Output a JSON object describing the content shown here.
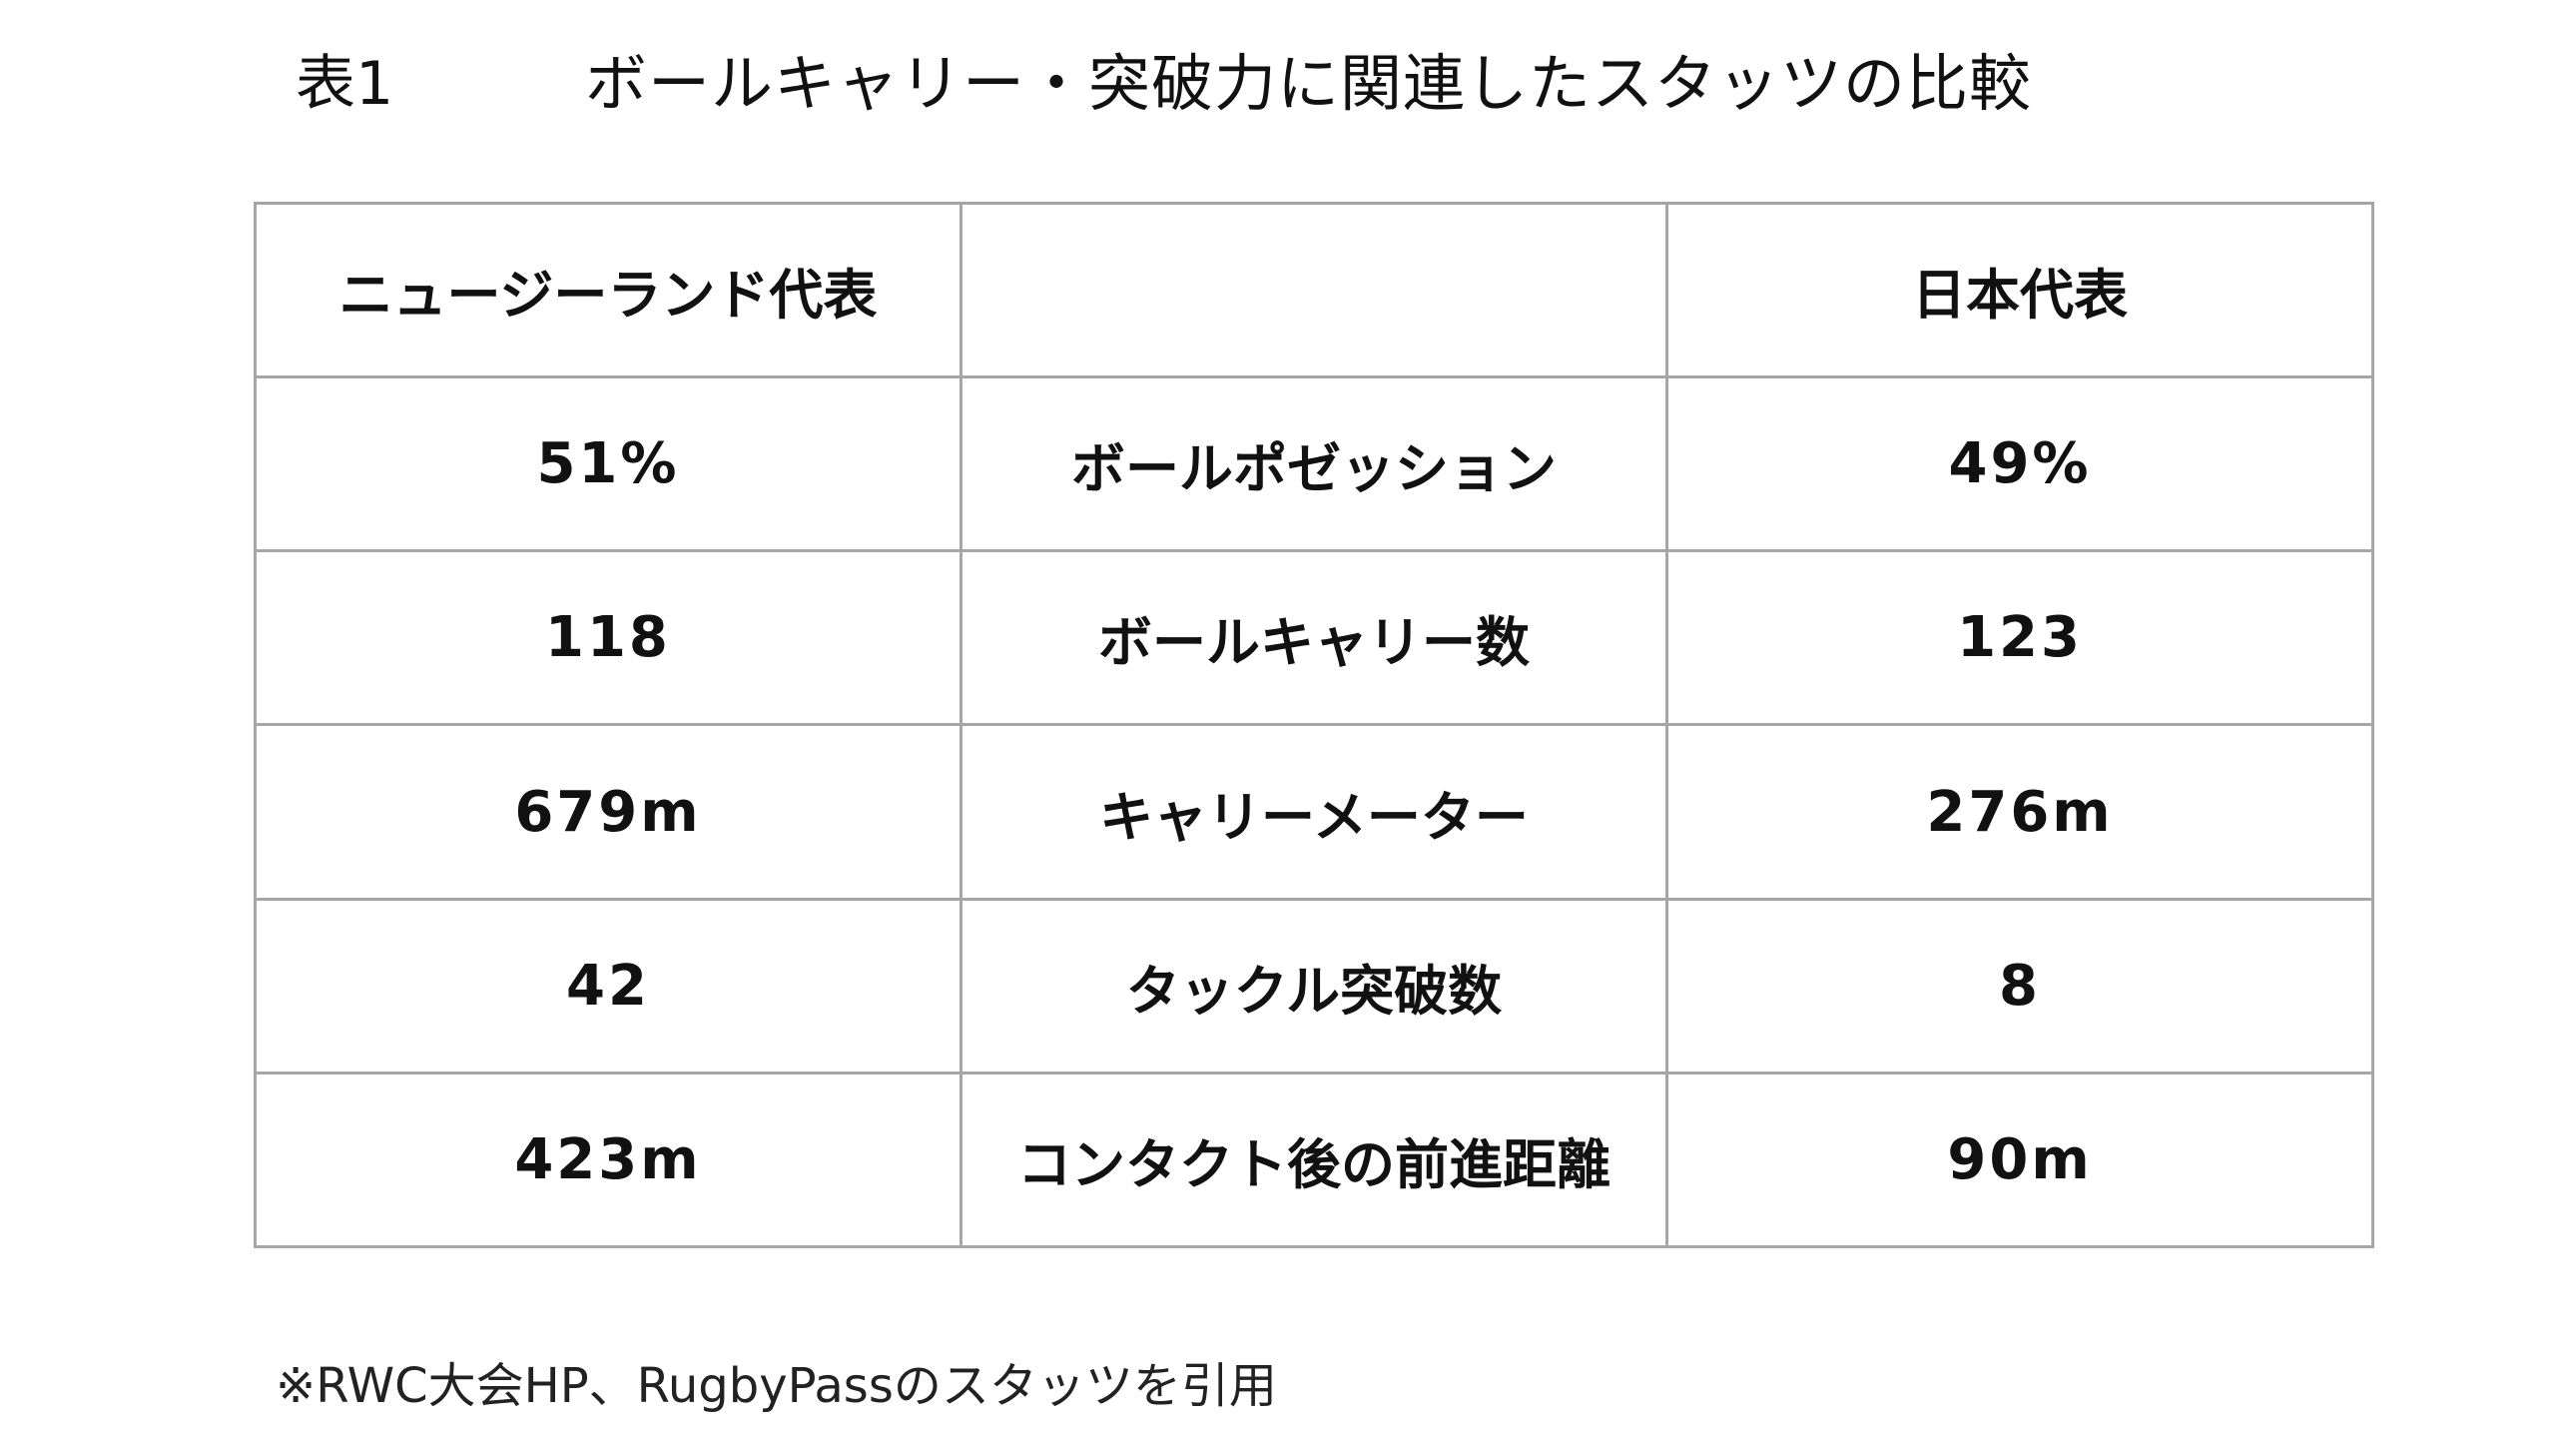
{
  "header": {
    "table_label": "表1",
    "title": "ボールキャリー・突破力に関連したスタッツの比較"
  },
  "table": {
    "columns": [
      "ニュージーランド代表",
      "",
      "日本代表"
    ],
    "rows": [
      {
        "nz": "51%",
        "metric": "ボールポゼッション",
        "jp": "49%"
      },
      {
        "nz": "118",
        "metric": "ボールキャリー数",
        "jp": "123"
      },
      {
        "nz": "679m",
        "metric": "キャリーメーター",
        "jp": "276m"
      },
      {
        "nz": "42",
        "metric": "タックル突破数",
        "jp": "8"
      },
      {
        "nz": "423m",
        "metric": "コンタクト後の前進距離",
        "jp": "90m"
      }
    ]
  },
  "footnote": "※RWC大会HP、RugbyPassのスタッツを引用"
}
